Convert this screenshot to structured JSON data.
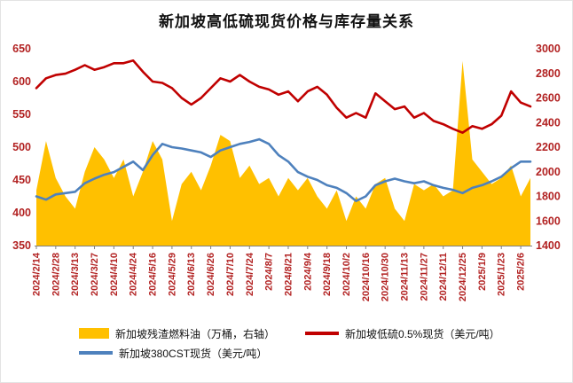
{
  "title": "新加坡高低硫现货价格与库存量关系",
  "chart_data": {
    "type": "line",
    "combo": "area + two lines, dual axis",
    "grid": false,
    "legend_position": "bottom",
    "axis_label_color": "#B22222",
    "axis_line_color": "#808080",
    "left_axis": {
      "min": 350,
      "max": 650,
      "ticks": [
        650,
        600,
        550,
        500,
        450,
        400,
        350
      ]
    },
    "right_axis": {
      "min": 1400,
      "max": 3000,
      "ticks": [
        3000,
        2800,
        2600,
        2400,
        2200,
        2000,
        1800,
        1600,
        1400
      ]
    },
    "x_tick_labels": [
      "2024/2/14",
      "2024/2/28",
      "2024/3/13",
      "2024/3/27",
      "2024/4/10",
      "2024/4/24",
      "2024/5/16",
      "2024/5/29",
      "2024/6/13",
      "2024/6/26",
      "2024/7/10",
      "2024/7/24",
      "2024/8/7",
      "2024/8/21",
      "2024/9/4",
      "2024/9/18",
      "2024/10/2",
      "2024/10/16",
      "2024/10/30",
      "2024/11/13",
      "2024/11/27",
      "2024/12/11",
      "2024/12/25",
      "2025/1/9",
      "2025/1/23",
      "2025/2/6"
    ],
    "x_label_every_n_points": 2,
    "series": [
      {
        "name": "新加坡残渣燃料油（万桶，右轴）",
        "type": "area",
        "axis": "right",
        "color": "#FFC000",
        "values": [
          1850,
          2250,
          1950,
          1800,
          1700,
          2000,
          2200,
          2100,
          1950,
          2100,
          1800,
          2000,
          2250,
          2100,
          1600,
          1900,
          2000,
          1850,
          2050,
          2300,
          2250,
          1950,
          2050,
          1900,
          1950,
          1800,
          1950,
          1850,
          1950,
          1800,
          1700,
          1850,
          1600,
          1800,
          1700,
          1900,
          1950,
          1700,
          1600,
          1900,
          1850,
          1900,
          1800,
          1850,
          2900,
          2100,
          2000,
          1900,
          1950,
          2050,
          1800,
          1950
        ]
      },
      {
        "name": "新加坡380CST现货（美元/吨）",
        "type": "line",
        "axis": "left",
        "color": "#4E81BD",
        "values": [
          425,
          420,
          428,
          430,
          432,
          445,
          452,
          458,
          462,
          470,
          478,
          465,
          488,
          505,
          500,
          498,
          495,
          492,
          485,
          495,
          500,
          505,
          508,
          512,
          505,
          488,
          478,
          462,
          455,
          450,
          442,
          438,
          430,
          418,
          425,
          442,
          448,
          452,
          448,
          445,
          448,
          442,
          438,
          435,
          430,
          438,
          442,
          448,
          455,
          468,
          478,
          478
        ]
      },
      {
        "name": "新加坡低硫0.5%现货（美元/吨）",
        "type": "line",
        "axis": "left",
        "color": "#C00000",
        "values": [
          590,
          605,
          610,
          612,
          618,
          625,
          618,
          622,
          628,
          628,
          632,
          615,
          600,
          598,
          590,
          575,
          565,
          575,
          590,
          605,
          600,
          610,
          600,
          592,
          588,
          580,
          585,
          570,
          585,
          592,
          580,
          560,
          545,
          552,
          545,
          582,
          570,
          558,
          562,
          545,
          552,
          540,
          535,
          528,
          522,
          532,
          528,
          535,
          548,
          585,
          568,
          562
        ]
      }
    ],
    "legend_order": [
      0,
      2,
      1
    ]
  }
}
